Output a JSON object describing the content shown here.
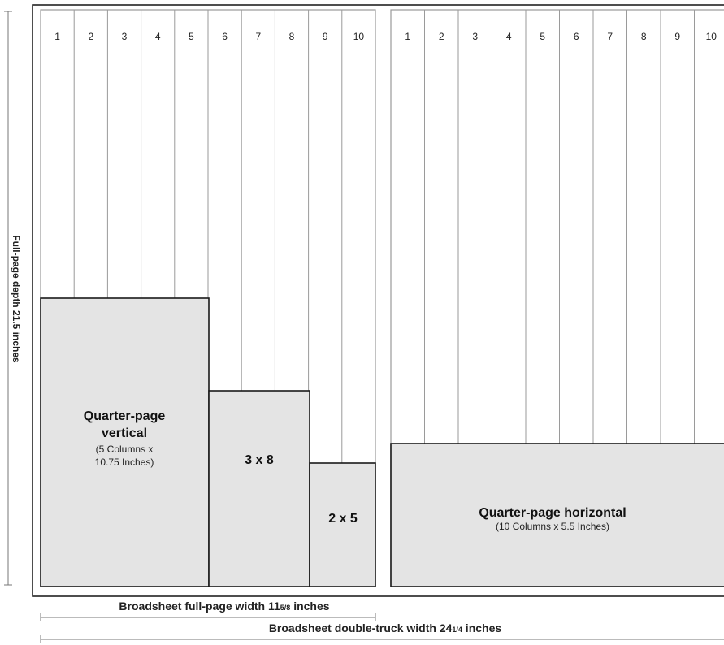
{
  "left_page": {
    "columns": [
      "1",
      "2",
      "3",
      "4",
      "5",
      "6",
      "7",
      "8",
      "9",
      "10"
    ]
  },
  "right_page": {
    "columns": [
      "1",
      "2",
      "3",
      "4",
      "5",
      "6",
      "7",
      "8",
      "9",
      "10"
    ]
  },
  "ads": {
    "quarter_vertical": {
      "title_line1": "Quarter-page",
      "title_line2": "vertical",
      "sub_line1": "(5 Columns x",
      "sub_line2": "10.75 Inches)"
    },
    "three_by_eight": {
      "title": "3 x 8"
    },
    "two_by_five": {
      "title": "2 x 5"
    },
    "quarter_horizontal": {
      "title": "Quarter-page horizontal",
      "sub": "(10 Columns x  5.5 Inches)"
    }
  },
  "dimensions": {
    "depth": "Full-page depth 21.5 inches",
    "full_width_prefix": "Broadsheet full-page width 11",
    "full_width_frac": "5/8",
    "full_width_suffix": " inches",
    "double_width_prefix": "Broadsheet double-truck width 24",
    "double_width_frac": "1/4",
    "double_width_suffix": " inches"
  }
}
